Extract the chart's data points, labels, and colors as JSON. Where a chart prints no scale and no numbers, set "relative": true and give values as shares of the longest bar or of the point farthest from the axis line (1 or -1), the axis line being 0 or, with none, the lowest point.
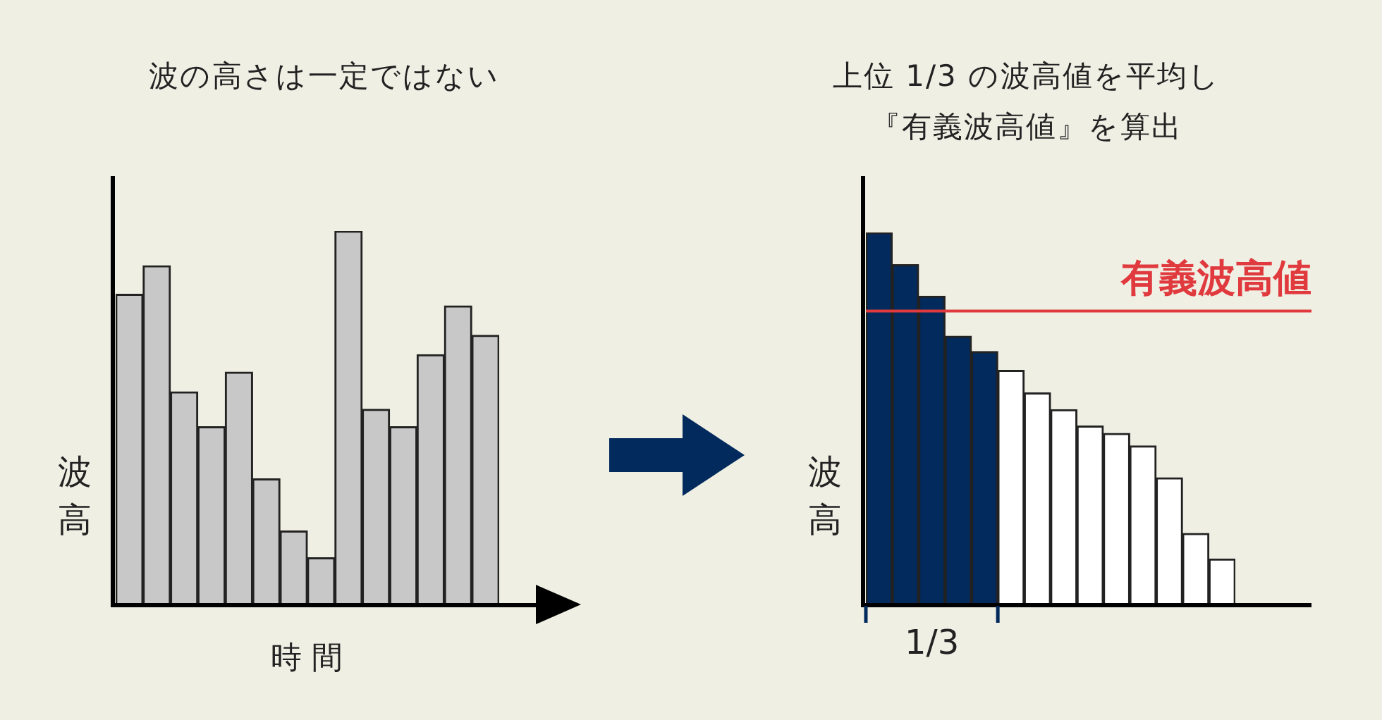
{
  "chart_data": [
    {
      "type": "bar",
      "title": "波の高さは一定ではない",
      "xlabel": "時 間",
      "ylabel": "波高",
      "relative": true,
      "legend": false,
      "categories": [
        null,
        null,
        null,
        null,
        null,
        null,
        null,
        null,
        null,
        null,
        null,
        null,
        null,
        null
      ],
      "values": [
        0.83,
        0.907,
        0.568,
        0.474,
        0.621,
        0.334,
        0.194,
        0.122,
        1,
        0.521,
        0.474,
        0.668,
        0.799,
        0.72
      ],
      "color": "#c8c8c8"
    },
    {
      "type": "bar",
      "title": "上位 1/3 の波高値を平均し『有義波高値』を算出",
      "ylabel": "波高",
      "relative": true,
      "legend": false,
      "categories": [
        null,
        null,
        null,
        null,
        null,
        null,
        null,
        null,
        null,
        null,
        null,
        null,
        null,
        null
      ],
      "values": [
        1,
        0.913,
        0.828,
        0.72,
        0.679,
        0.628,
        0.567,
        0.522,
        0.478,
        0.458,
        0.424,
        0.338,
        0.188,
        0.119
      ],
      "colors": [
        "#022a5c",
        "#022a5c",
        "#022a5c",
        "#022a5c",
        "#022a5c",
        "#ffffff",
        "#ffffff",
        "#ffffff",
        "#ffffff",
        "#ffffff",
        "#ffffff",
        "#ffffff",
        "#ffffff",
        "#ffffff"
      ],
      "ref_lines": [
        {
          "axis": "y",
          "value": 0.788,
          "label": "有義波高値",
          "color": "#e03a3e"
        }
      ],
      "annotations": [
        "1/3"
      ]
    }
  ]
}
